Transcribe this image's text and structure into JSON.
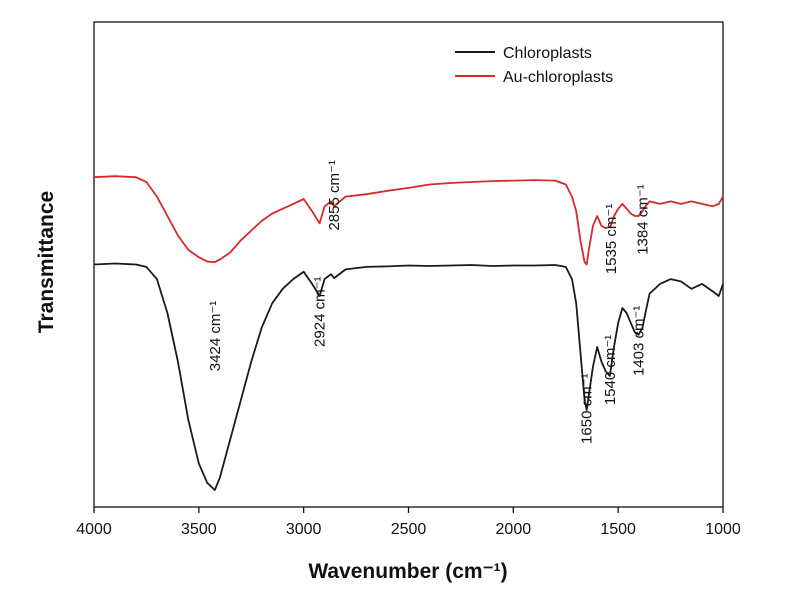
{
  "chart_data": {
    "type": "line",
    "xlabel": "Wavenumber (cm⁻¹)",
    "ylabel": "Transmittance",
    "xlim": [
      4000,
      1000
    ],
    "ylim": [
      0,
      100
    ],
    "x_ticks": [
      4000,
      3500,
      3000,
      2500,
      2000,
      1500,
      1000
    ],
    "y_ticks_shown": false,
    "grid": false,
    "legend_position": "top-right",
    "series": [
      {
        "name": "Chloroplasts",
        "color": "#1a1a1a",
        "points": [
          [
            4000,
            50
          ],
          [
            3900,
            50.2
          ],
          [
            3800,
            50
          ],
          [
            3750,
            49.5
          ],
          [
            3700,
            47
          ],
          [
            3650,
            40
          ],
          [
            3600,
            30
          ],
          [
            3550,
            18
          ],
          [
            3500,
            9
          ],
          [
            3460,
            5
          ],
          [
            3424,
            3.5
          ],
          [
            3400,
            6
          ],
          [
            3350,
            14
          ],
          [
            3300,
            22
          ],
          [
            3250,
            30
          ],
          [
            3200,
            37
          ],
          [
            3150,
            42
          ],
          [
            3100,
            45
          ],
          [
            3050,
            47
          ],
          [
            3000,
            48.5
          ],
          [
            2960,
            46
          ],
          [
            2924,
            43.5
          ],
          [
            2900,
            47
          ],
          [
            2870,
            48
          ],
          [
            2855,
            47.2
          ],
          [
            2800,
            49
          ],
          [
            2700,
            49.5
          ],
          [
            2600,
            49.6
          ],
          [
            2500,
            49.8
          ],
          [
            2400,
            49.7
          ],
          [
            2300,
            49.8
          ],
          [
            2200,
            49.9
          ],
          [
            2100,
            49.7
          ],
          [
            2000,
            49.8
          ],
          [
            1900,
            49.8
          ],
          [
            1800,
            49.9
          ],
          [
            1750,
            49.5
          ],
          [
            1720,
            47
          ],
          [
            1700,
            42
          ],
          [
            1680,
            32
          ],
          [
            1660,
            22
          ],
          [
            1650,
            20
          ],
          [
            1640,
            23
          ],
          [
            1620,
            29
          ],
          [
            1600,
            33
          ],
          [
            1580,
            30
          ],
          [
            1560,
            28
          ],
          [
            1540,
            27
          ],
          [
            1520,
            33
          ],
          [
            1500,
            38
          ],
          [
            1480,
            41
          ],
          [
            1460,
            40
          ],
          [
            1440,
            38
          ],
          [
            1420,
            36
          ],
          [
            1403,
            35.5
          ],
          [
            1384,
            37
          ],
          [
            1370,
            40
          ],
          [
            1350,
            44
          ],
          [
            1300,
            46
          ],
          [
            1250,
            47
          ],
          [
            1200,
            46.5
          ],
          [
            1150,
            45
          ],
          [
            1100,
            46
          ],
          [
            1050,
            44.5
          ],
          [
            1020,
            43.5
          ],
          [
            1000,
            46
          ]
        ]
      },
      {
        "name": "Au-chloroplasts",
        "color": "#d42a2a",
        "points": [
          [
            4000,
            68
          ],
          [
            3900,
            68.2
          ],
          [
            3800,
            68
          ],
          [
            3750,
            67
          ],
          [
            3700,
            64
          ],
          [
            3650,
            60
          ],
          [
            3600,
            56
          ],
          [
            3550,
            53
          ],
          [
            3500,
            51.5
          ],
          [
            3460,
            50.6
          ],
          [
            3424,
            50.5
          ],
          [
            3400,
            51
          ],
          [
            3350,
            52.5
          ],
          [
            3300,
            55
          ],
          [
            3250,
            57
          ],
          [
            3200,
            59
          ],
          [
            3150,
            60.5
          ],
          [
            3100,
            61.5
          ],
          [
            3050,
            62.5
          ],
          [
            3000,
            63.5
          ],
          [
            2960,
            61
          ],
          [
            2924,
            58.5
          ],
          [
            2900,
            62
          ],
          [
            2870,
            63
          ],
          [
            2855,
            62
          ],
          [
            2800,
            64
          ],
          [
            2700,
            64.5
          ],
          [
            2600,
            65.2
          ],
          [
            2500,
            65.8
          ],
          [
            2400,
            66.5
          ],
          [
            2300,
            66.8
          ],
          [
            2200,
            67
          ],
          [
            2100,
            67.2
          ],
          [
            2000,
            67.3
          ],
          [
            1900,
            67.4
          ],
          [
            1800,
            67.3
          ],
          [
            1750,
            66.5
          ],
          [
            1720,
            64
          ],
          [
            1700,
            61
          ],
          [
            1680,
            55
          ],
          [
            1660,
            50.5
          ],
          [
            1650,
            50
          ],
          [
            1640,
            53
          ],
          [
            1620,
            58
          ],
          [
            1600,
            60
          ],
          [
            1580,
            58
          ],
          [
            1560,
            57.5
          ],
          [
            1540,
            57.8
          ],
          [
            1535,
            58
          ],
          [
            1520,
            60
          ],
          [
            1500,
            61.5
          ],
          [
            1480,
            62.5
          ],
          [
            1460,
            61.5
          ],
          [
            1440,
            60.5
          ],
          [
            1420,
            60
          ],
          [
            1403,
            60
          ],
          [
            1384,
            61
          ],
          [
            1370,
            62
          ],
          [
            1350,
            63
          ],
          [
            1300,
            62.5
          ],
          [
            1250,
            63
          ],
          [
            1200,
            62.5
          ],
          [
            1150,
            63
          ],
          [
            1100,
            62.5
          ],
          [
            1050,
            62
          ],
          [
            1020,
            62.5
          ],
          [
            1000,
            64
          ]
        ]
      }
    ],
    "annotations": [
      {
        "text": "3424 cm⁻¹",
        "x": 3424,
        "y": 28
      },
      {
        "text": "2924 cm⁻¹",
        "x": 2924,
        "y": 33
      },
      {
        "text": "2855 cm⁻¹",
        "x": 2855,
        "y": 57
      },
      {
        "text": "1650 cm⁻¹",
        "x": 1650,
        "y": 13
      },
      {
        "text": "1540 cm⁻¹",
        "x": 1540,
        "y": 21
      },
      {
        "text": "1535 cm⁻¹",
        "x": 1535,
        "y": 48
      },
      {
        "text": "1403 cm⁻¹",
        "x": 1403,
        "y": 27
      },
      {
        "text": "1384 cm⁻¹",
        "x": 1384,
        "y": 52
      }
    ]
  }
}
